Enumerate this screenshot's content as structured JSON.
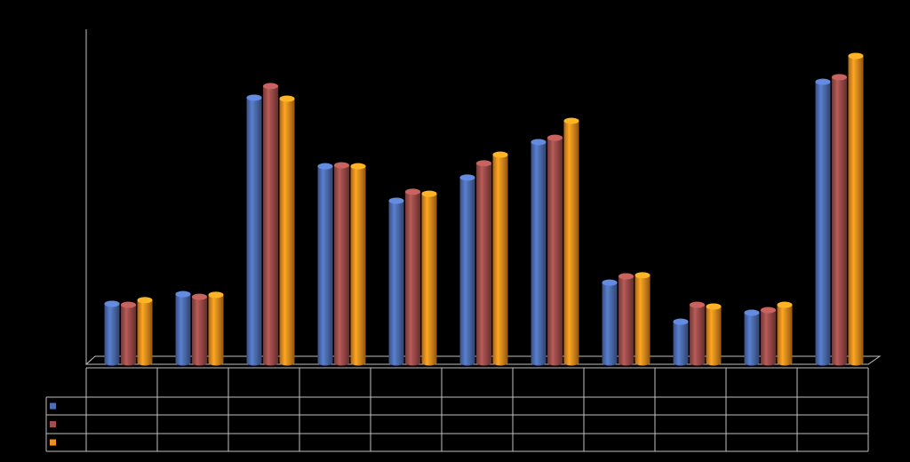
{
  "chart_data": {
    "type": "bar",
    "style": "cylinder",
    "categories": [
      null,
      null,
      null,
      null,
      null,
      null,
      null,
      null,
      null,
      null,
      null
    ],
    "ylim": [
      0,
      100
    ],
    "series": [
      {
        "color": "#4f6fb5",
        "values": [
          17.7,
          20.6,
          79.9,
          59.2,
          48.8,
          55.8,
          66.5,
          24.1,
          12.3,
          15.0,
          84.7
        ]
      },
      {
        "color": "#a04f4c",
        "values": [
          17.4,
          19.8,
          83.4,
          59.5,
          51.5,
          60.1,
          67.8,
          26.0,
          17.4,
          15.8,
          86.1
        ]
      },
      {
        "color": "#f0901e",
        "values": [
          18.8,
          20.4,
          79.6,
          59.2,
          50.9,
          62.7,
          72.9,
          26.3,
          16.9,
          17.4,
          92.5
        ]
      }
    ]
  }
}
